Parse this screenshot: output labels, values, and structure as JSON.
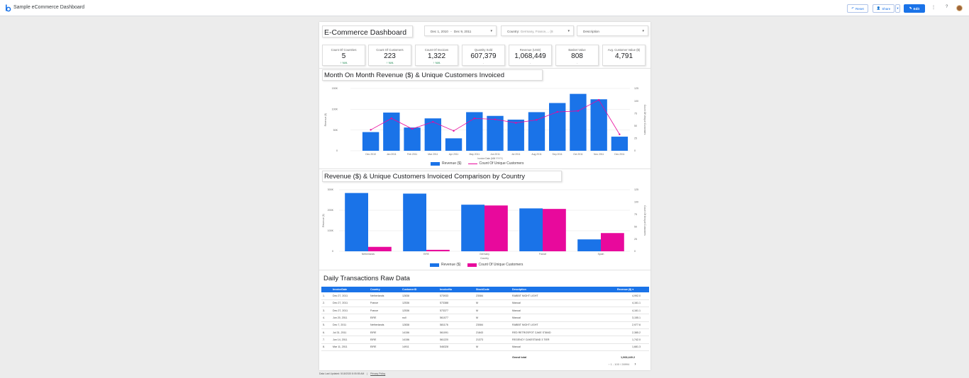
{
  "app": {
    "title": "Sample eCommerce Dashboard"
  },
  "toolbar": {
    "reset": "Reset",
    "share": "Share",
    "edit": "Edit",
    "more_icon": "more-vert-icon",
    "help_icon": "help-icon"
  },
  "report": {
    "title": "E-Commerce Dashboard"
  },
  "controls": {
    "date": {
      "start": "Dec 1, 2010",
      "end": "Dec 9, 2011"
    },
    "country": {
      "label": "Country:",
      "value": "Germany, France,... (8"
    },
    "description": {
      "label": "Description"
    }
  },
  "kpis": [
    {
      "label": "Count Of Countries",
      "value": "5",
      "delta": "N/A"
    },
    {
      "label": "Count Of Customers",
      "value": "223",
      "delta": "N/A"
    },
    {
      "label": "Count Of Invoices",
      "value": "1,322",
      "delta": "N/A"
    },
    {
      "label": "Quantity Sold",
      "value": "607,379",
      "delta": "-"
    },
    {
      "label": "Revenue (USD)",
      "value": "1,068,449",
      "delta": "-"
    },
    {
      "label": "Basket Value",
      "value": "808",
      "delta": "-"
    },
    {
      "label": "Avg. Customer Value ($)",
      "value": "4,791",
      "delta": ""
    }
  ],
  "sections": {
    "monthly": "Month On Month Revenue ($) & Unique Customers Invoiced",
    "country": "Revenue ($) & Unique Customers Invoiced Comparison by Country",
    "raw": "Daily Transactions Raw Data"
  },
  "colors": {
    "revenue": "#1a73e8",
    "customers": "#e8099c",
    "header": "#1a73e8"
  },
  "chart_data": [
    {
      "type": "bar",
      "categories": [
        "Dec 2010",
        "Jan 2011",
        "Feb 2011",
        "Mar 2011",
        "Apr 2011",
        "May 2011",
        "Jun 2011",
        "Jul 2011",
        "Aug 2011",
        "Sep 2011",
        "Oct 2011",
        "Nov 2011",
        "Dec 2011"
      ],
      "series": [
        {
          "name": "Revenue ($)",
          "type": "bar",
          "axis": "left",
          "values": [
            45000,
            92000,
            56000,
            78000,
            30000,
            93000,
            84000,
            75000,
            93000,
            115000,
            137000,
            124000,
            34000
          ]
        },
        {
          "name": "Count Of Unique Customers",
          "type": "line",
          "axis": "right",
          "values": [
            42,
            65,
            44,
            58,
            40,
            65,
            63,
            56,
            62,
            78,
            80,
            102,
            33
          ]
        }
      ],
      "xlabel": "Invoice Date (MM YYYY)",
      "ylabel": "Revenue ($)",
      "y2label": "Count Of Unique Customers",
      "ylim": [
        0,
        150000
      ],
      "y2lim": [
        0,
        125
      ],
      "yticks": [
        "0",
        "50K",
        "100K",
        "150K"
      ],
      "y2ticks": [
        "0",
        "25",
        "50",
        "75",
        "100",
        "125"
      ],
      "xticks": [
        "Dec 2010",
        "Jan 2011",
        "Feb 2011",
        "Mar 2011",
        "Apr 2011",
        "May 2011",
        "Jun 2011",
        "Jul 2011",
        "Aug 2011",
        "Sep 2011",
        "Oct 2011",
        "Nov 2011",
        "Dec 2011"
      ],
      "grid": true,
      "legend": "bottom"
    },
    {
      "type": "bar",
      "categories": [
        "Netherlands",
        "EIRE",
        "Germany",
        "France",
        "Spain"
      ],
      "series": [
        {
          "name": "Revenue ($)",
          "axis": "left",
          "values": [
            284000,
            281000,
            227000,
            209000,
            58000
          ]
        },
        {
          "name": "Count Of Unique Customers",
          "axis": "right",
          "values": [
            9,
            3,
            93,
            86,
            37
          ]
        }
      ],
      "xlabel": "Country",
      "ylabel": "Revenue ($)",
      "y2label": "Count Of Unique Customers",
      "ylim": [
        0,
        300000
      ],
      "y2lim": [
        0,
        125
      ],
      "yticks": [
        "0",
        "100K",
        "200K",
        "300K"
      ],
      "y2ticks": [
        "0",
        "25",
        "50",
        "75",
        "100",
        "125"
      ],
      "grid": true,
      "legend": "bottom"
    }
  ],
  "table": {
    "columns": [
      "InvoiceDate",
      "Country",
      "CustomerID",
      "InvoiceNo",
      "StockCode",
      "Description",
      "Revenue ($)"
    ],
    "sort_icon": "sort-desc-icon",
    "rows": [
      {
        "n": "1.",
        "date": "Dec 27, 2011",
        "country": "Netherlands",
        "cust": "12838",
        "inv": "573933",
        "stock": "23084",
        "desc": "RABBIT NIGHT LIGHT",
        "rev": "4,992.0"
      },
      {
        "n": "2.",
        "date": "Dec 27, 2011",
        "country": "France",
        "cust": "12536",
        "inv": "573388",
        "stock": "M",
        "desc": "Manual",
        "rev": "4,161.1"
      },
      {
        "n": "3.",
        "date": "Dec 27, 2011",
        "country": "France",
        "cust": "12536",
        "inv": "573377",
        "stock": "M",
        "desc": "Manual",
        "rev": "4,161.1"
      },
      {
        "n": "4.",
        "date": "Jun 20, 2011",
        "country": "EIRE",
        "cust": "null",
        "inv": "561077",
        "stock": "M",
        "desc": "Manual",
        "rev": "3,155.1"
      },
      {
        "n": "5.",
        "date": "Dec 7, 2011",
        "country": "Netherlands",
        "cust": "12838",
        "inv": "581176",
        "stock": "23084",
        "desc": "RABBIT NIGHT LIGHT",
        "rev": "2,977.6"
      },
      {
        "n": "6.",
        "date": "Jul 31, 2011",
        "country": "EIRE",
        "cust": "14156",
        "inv": "561091",
        "stock": "21843",
        "desc": "RED RETROSPOT CAKE STAND",
        "rev": "2,385.2"
      },
      {
        "n": "7.",
        "date": "Jun 14, 2011",
        "country": "EIRE",
        "cust": "14156",
        "inv": "561220",
        "stock": "21373",
        "desc": "REGENCY CAKESTAND 3 TIER",
        "rev": "1,742.0"
      },
      {
        "n": "8.",
        "date": "Mar 11, 2011",
        "country": "EIRE",
        "cust": "14911",
        "inv": "546328",
        "stock": "M",
        "desc": "Manual",
        "rev": "1,681.3"
      }
    ],
    "grand_label": "Grand total",
    "grand_value": "1,068,449.2",
    "pagination": "1 - 100 / 28994"
  },
  "footer": {
    "data_source": "Data Last Updated: 5/18/2020 8:05:55 AM",
    "privacy": "Privacy Policy"
  }
}
